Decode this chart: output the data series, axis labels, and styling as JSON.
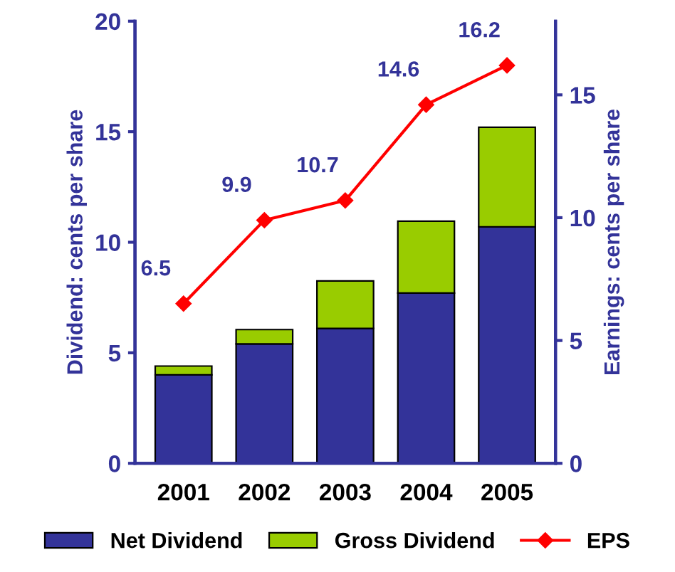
{
  "chart_data": {
    "type": "bar",
    "stacked": true,
    "categories": [
      "2001",
      "2002",
      "2003",
      "2004",
      "2005"
    ],
    "ylabel": "Dividend: cents per share",
    "y2label": "Earnings: cents per share",
    "ylim": [
      0,
      20
    ],
    "yticks": [
      0,
      5,
      10,
      15,
      20
    ],
    "y2lim": [
      0,
      18
    ],
    "y2ticks": [
      0,
      5,
      10,
      15
    ],
    "legend": "bottom",
    "grid": false,
    "series": [
      {
        "name": "Net Dividend",
        "color": "#333399",
        "values": [
          4.0,
          5.4,
          6.1,
          7.7,
          10.7
        ]
      },
      {
        "name": "Gross Dividend",
        "color": "#99cc00",
        "values": [
          0.4,
          0.65,
          2.15,
          3.25,
          4.5
        ]
      },
      {
        "name": "EPS",
        "type": "line",
        "axis": "y2",
        "color": "#ff0000",
        "marker": "diamond",
        "values": [
          6.5,
          9.9,
          10.7,
          14.6,
          16.2
        ],
        "value_labels": [
          "6.5",
          "9.9",
          "10.7",
          "14.6",
          "16.2"
        ]
      }
    ]
  }
}
